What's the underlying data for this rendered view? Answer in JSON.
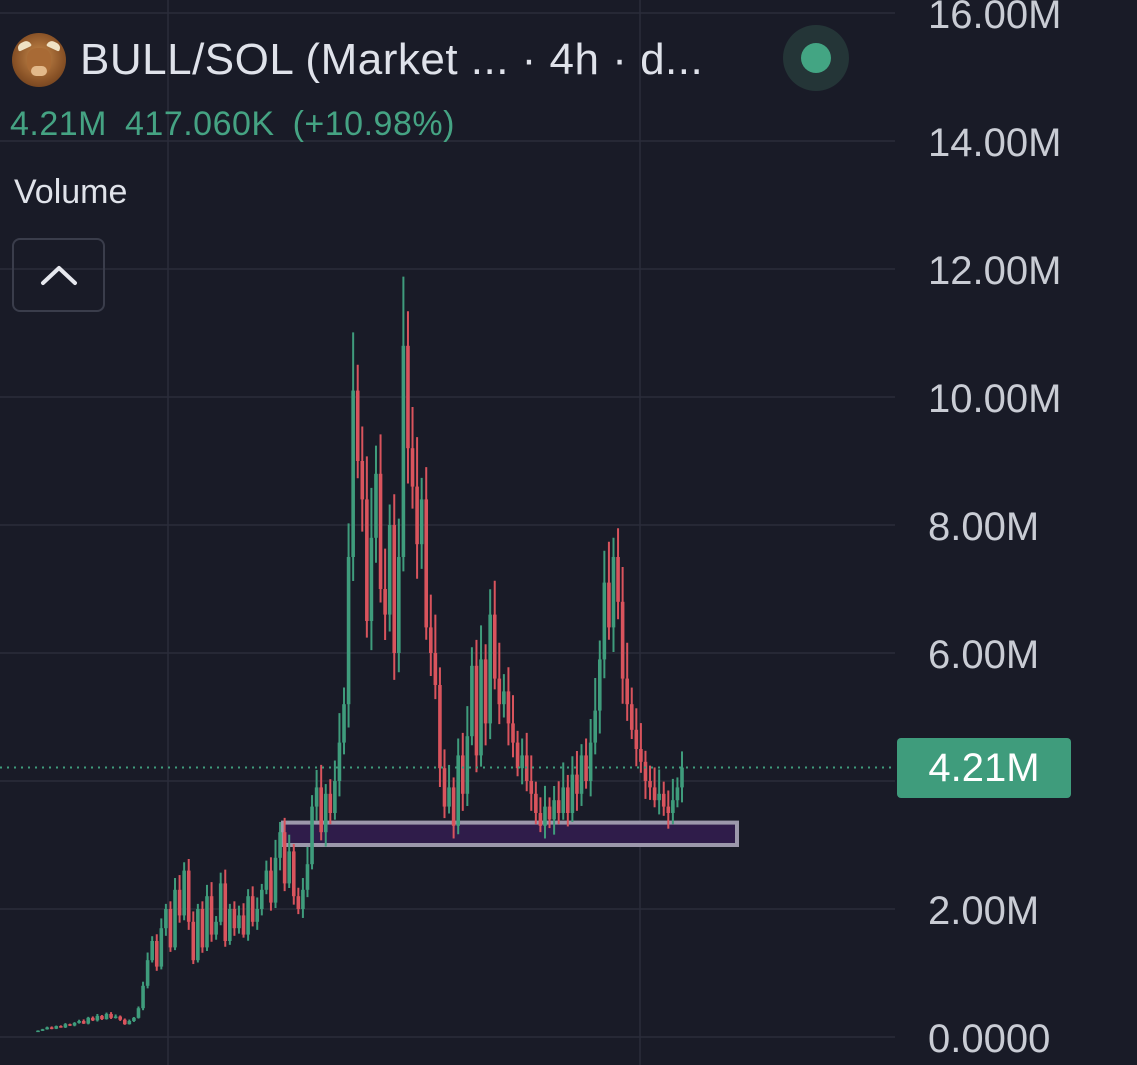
{
  "header": {
    "pair_title": "BULL/SOL (Market ... · 4h · d...",
    "logo_icon": "bull-head-icon",
    "status_icon": "live-status-dot-icon"
  },
  "price_row": {
    "last_value": "4.21M",
    "change_abs": "417.060K",
    "change_pct": "(+10.98%)"
  },
  "indicator": {
    "label": "Volume",
    "collapse_icon": "chevron-up-icon"
  },
  "colors": {
    "background": "#191b27",
    "up": "#3f9c7c",
    "down": "#d9545d",
    "grid": "#2a2d3a",
    "zone_fill": "#2f1c4a",
    "zone_stroke": "#9c98ab"
  },
  "last_price_tag": "4.21M",
  "chart_data": {
    "type": "candlestick",
    "interval": "4h",
    "y_axis": {
      "ticks": [
        "16.00M",
        "14.00M",
        "12.00M",
        "10.00M",
        "8.00M",
        "6.00M",
        "2.00M",
        "0.0000"
      ],
      "tick_values": [
        16,
        14,
        12,
        10,
        8,
        6,
        2,
        0
      ],
      "unit": "M",
      "range": [
        0,
        16
      ]
    },
    "last_price": 4.21,
    "support_zone": {
      "low": 3.0,
      "high": 3.35
    },
    "grid": true,
    "series": [
      {
        "values_close": [
          0.1,
          0.12,
          0.15,
          0.13,
          0.17,
          0.15,
          0.2,
          0.18,
          0.22,
          0.25,
          0.21,
          0.3,
          0.26,
          0.33,
          0.28,
          0.36,
          0.3,
          0.32,
          0.27,
          0.2,
          0.25,
          0.3,
          0.45,
          0.8,
          1.2,
          1.5,
          1.1,
          1.7,
          2.0,
          1.4,
          2.3,
          1.9,
          2.6,
          1.8,
          1.2,
          2.0,
          1.4,
          2.2,
          1.6,
          1.8,
          2.4,
          1.5,
          2.0,
          1.7,
          1.9,
          1.6,
          2.2,
          1.8,
          2.0,
          2.3,
          2.6,
          2.1,
          2.8,
          3.2,
          2.4,
          2.9,
          2.2,
          2.0,
          2.3,
          2.7,
          3.6,
          3.9,
          3.2,
          3.8,
          3.5,
          4.0,
          4.6,
          5.2,
          7.5,
          10.1,
          9.0,
          8.4,
          6.5,
          7.8,
          8.8,
          7.0,
          6.6,
          8.0,
          6.0,
          7.5,
          10.8,
          9.2,
          8.6,
          7.7,
          8.4,
          6.4,
          6.0,
          5.5,
          4.2,
          3.6,
          3.9,
          3.3,
          4.4,
          3.8,
          4.7,
          5.8,
          4.4,
          5.9,
          4.9,
          6.6,
          5.6,
          5.2,
          5.4,
          4.9,
          4.6,
          4.2,
          4.4,
          4.0,
          3.8,
          3.5,
          3.3,
          3.6,
          3.4,
          3.7,
          3.5,
          3.9,
          3.5,
          4.1,
          3.8,
          4.4,
          4.0,
          4.6,
          5.1,
          5.9,
          7.1,
          6.4,
          7.5,
          6.8,
          5.6,
          5.2,
          4.8,
          4.5,
          4.3,
          4.0,
          3.9,
          3.7,
          3.8,
          3.6,
          3.5,
          3.7,
          3.9,
          4.21
        ]
      }
    ]
  }
}
